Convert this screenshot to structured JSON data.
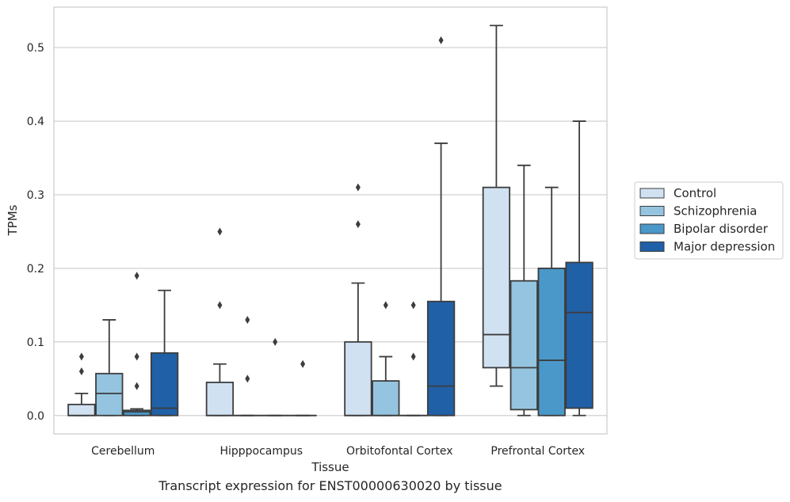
{
  "caption": "Transcript expression for ENST00000630020 by tissue",
  "chart_data": {
    "type": "boxplot",
    "xlabel": "Tissue",
    "ylabel": "TPMs",
    "ylim": [
      -0.025,
      0.555
    ],
    "yticks": [
      0.0,
      0.1,
      0.2,
      0.3,
      0.4,
      0.5
    ],
    "ytick_labels": [
      "0.0",
      "0.1",
      "0.2",
      "0.3",
      "0.4",
      "0.5"
    ],
    "grid": true,
    "legend_position": "right",
    "categories": [
      "Cerebellum",
      "Hipppocampus",
      "Orbitofontal Cortex",
      "Prefrontal Cortex"
    ],
    "series": [
      {
        "name": "Control",
        "color": "#d0e1f2",
        "boxes": [
          {
            "whislo": 0.0,
            "q1": 0.0,
            "med": 0.0,
            "q3": 0.015,
            "whishi": 0.03,
            "fliers": [
              0.06,
              0.08
            ]
          },
          {
            "whislo": 0.0,
            "q1": 0.0,
            "med": 0.0,
            "q3": 0.045,
            "whishi": 0.07,
            "fliers": [
              0.15,
              0.25
            ]
          },
          {
            "whislo": 0.0,
            "q1": 0.0,
            "med": 0.0,
            "q3": 0.1,
            "whishi": 0.18,
            "fliers": [
              0.26,
              0.31
            ]
          },
          {
            "whislo": 0.04,
            "q1": 0.065,
            "med": 0.11,
            "q3": 0.31,
            "whishi": 0.53,
            "fliers": []
          }
        ]
      },
      {
        "name": "Schizophrenia",
        "color": "#94c4df",
        "boxes": [
          {
            "whislo": 0.0,
            "q1": 0.0,
            "med": 0.03,
            "q3": 0.057,
            "whishi": 0.13,
            "fliers": []
          },
          {
            "whislo": 0.0,
            "q1": 0.0,
            "med": 0.0,
            "q3": 0.0,
            "whishi": 0.0,
            "fliers": [
              0.05,
              0.13
            ]
          },
          {
            "whislo": 0.0,
            "q1": 0.0,
            "med": 0.0,
            "q3": 0.047,
            "whishi": 0.08,
            "fliers": [
              0.15
            ]
          },
          {
            "whislo": 0.0,
            "q1": 0.008,
            "med": 0.065,
            "q3": 0.183,
            "whishi": 0.34,
            "fliers": []
          }
        ]
      },
      {
        "name": "Bipolar disorder",
        "color": "#4a98c9",
        "boxes": [
          {
            "whislo": 0.0,
            "q1": 0.0,
            "med": 0.005,
            "q3": 0.007,
            "whishi": 0.009,
            "fliers": [
              0.04,
              0.08,
              0.19
            ]
          },
          {
            "whislo": 0.0,
            "q1": 0.0,
            "med": 0.0,
            "q3": 0.0,
            "whishi": 0.0,
            "fliers": [
              0.1
            ]
          },
          {
            "whislo": 0.0,
            "q1": 0.0,
            "med": 0.0,
            "q3": 0.0,
            "whishi": 0.0,
            "fliers": [
              0.08,
              0.15
            ]
          },
          {
            "whislo": 0.0,
            "q1": 0.0,
            "med": 0.075,
            "q3": 0.2,
            "whishi": 0.31,
            "fliers": []
          }
        ]
      },
      {
        "name": "Major depression",
        "color": "#2060a7",
        "boxes": [
          {
            "whislo": 0.0,
            "q1": 0.0,
            "med": 0.01,
            "q3": 0.085,
            "whishi": 0.17,
            "fliers": []
          },
          {
            "whislo": 0.0,
            "q1": 0.0,
            "med": 0.0,
            "q3": 0.0,
            "whishi": 0.0,
            "fliers": [
              0.07
            ]
          },
          {
            "whislo": 0.0,
            "q1": 0.0,
            "med": 0.04,
            "q3": 0.155,
            "whishi": 0.37,
            "fliers": [
              0.51
            ]
          },
          {
            "whislo": 0.0,
            "q1": 0.01,
            "med": 0.14,
            "q3": 0.208,
            "whishi": 0.4,
            "fliers": []
          }
        ]
      }
    ]
  }
}
